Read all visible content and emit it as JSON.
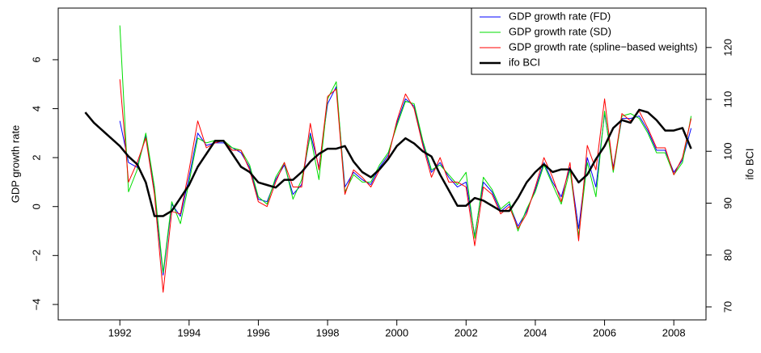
{
  "chart_data": {
    "type": "line",
    "xlabel": null,
    "ylabel": "GDP growth rate",
    "y2label": "ifo BCI",
    "xlim": [
      1990.22,
      2008.93
    ],
    "xticks": [
      1992,
      1994,
      1996,
      1998,
      2000,
      2002,
      2004,
      2006,
      2008
    ],
    "ylim": [
      -4.63,
      8.11
    ],
    "yticks": [
      {
        "value": -4,
        "label": "−4"
      },
      {
        "value": -2,
        "label": "−2"
      },
      0,
      2,
      4,
      6
    ],
    "y2lim": [
      67.5,
      127.6
    ],
    "y2ticks": [
      70,
      80,
      90,
      100,
      110,
      120
    ],
    "legend": "topright",
    "series": [
      {
        "name": "GDP growth rate (FD)",
        "color": "#0000ff",
        "width": 1,
        "x": [
          1992,
          1992.25,
          1992.5,
          1992.75,
          1993,
          1993.25,
          1993.5,
          1993.75,
          1994,
          1994.25,
          1994.5,
          1994.75,
          1995,
          1995.25,
          1995.5,
          1995.75,
          1996,
          1996.25,
          1996.5,
          1996.75,
          1997,
          1997.25,
          1997.5,
          1997.75,
          1998,
          1998.25,
          1998.5,
          1998.75,
          1999,
          1999.25,
          1999.5,
          1999.75,
          2000,
          2000.25,
          2000.5,
          2000.75,
          2001,
          2001.25,
          2001.5,
          2001.75,
          2002,
          2002.25,
          2002.5,
          2002.75,
          2003,
          2003.25,
          2003.5,
          2003.75,
          2004,
          2004.25,
          2004.5,
          2004.75,
          2005,
          2005.25,
          2005.5,
          2005.75,
          2006,
          2006.25,
          2006.5,
          2006.75,
          2007,
          2007.25,
          2007.5,
          2007.75,
          2008,
          2008.25,
          2008.5
        ],
        "values": [
          3.5,
          1.8,
          1.6,
          2.9,
          0.6,
          -2.8,
          0.1,
          -0.4,
          1.2,
          3.0,
          2.5,
          2.6,
          2.6,
          2.4,
          2.2,
          1.6,
          0.3,
          0.2,
          1.1,
          1.7,
          0.5,
          0.9,
          3.0,
          1.6,
          4.2,
          4.9,
          0.8,
          1.4,
          1.1,
          0.9,
          1.6,
          2.1,
          3.4,
          4.4,
          4.1,
          2.6,
          1.4,
          1.8,
          1.2,
          0.8,
          1.0,
          -1.2,
          1.0,
          0.6,
          -0.2,
          0.1,
          -0.8,
          -0.2,
          0.7,
          1.8,
          1.0,
          0.4,
          1.6,
          -0.9,
          2.0,
          0.8,
          3.8,
          1.6,
          3.6,
          3.6,
          3.7,
          3.1,
          2.3,
          2.3,
          1.4,
          1.9,
          3.2
        ]
      },
      {
        "name": "GDP growth rate (SD)",
        "color": "#00dd00",
        "width": 1,
        "x": [
          1992,
          1992.25,
          1992.5,
          1992.75,
          1993,
          1993.25,
          1993.5,
          1993.75,
          1994,
          1994.25,
          1994.5,
          1994.75,
          1995,
          1995.25,
          1995.5,
          1995.75,
          1996,
          1996.25,
          1996.5,
          1996.75,
          1997,
          1997.25,
          1997.5,
          1997.75,
          1998,
          1998.25,
          1998.5,
          1998.75,
          1999,
          1999.25,
          1999.5,
          1999.75,
          2000,
          2000.25,
          2000.5,
          2000.75,
          2001,
          2001.25,
          2001.5,
          2001.75,
          2002,
          2002.25,
          2002.5,
          2002.75,
          2003,
          2003.25,
          2003.5,
          2003.75,
          2004,
          2004.25,
          2004.5,
          2004.75,
          2005,
          2005.25,
          2005.5,
          2005.75,
          2006,
          2006.25,
          2006.5,
          2006.75,
          2007,
          2007.25,
          2007.5,
          2007.75,
          2008,
          2008.25,
          2008.5
        ],
        "values": [
          7.4,
          0.6,
          1.5,
          3.0,
          0.8,
          -2.7,
          0.2,
          -0.7,
          1.0,
          2.8,
          2.6,
          2.7,
          2.7,
          2.4,
          2.3,
          1.7,
          0.4,
          0.1,
          1.2,
          1.8,
          0.3,
          1.1,
          2.9,
          1.1,
          4.4,
          5.1,
          0.6,
          1.3,
          1.0,
          1.0,
          1.7,
          2.2,
          3.3,
          4.3,
          4.2,
          2.7,
          1.5,
          1.7,
          1.3,
          0.9,
          1.4,
          -1.3,
          1.2,
          0.7,
          -0.1,
          0.2,
          -1.0,
          -0.1,
          0.6,
          1.7,
          0.9,
          0.1,
          1.5,
          -1.2,
          1.8,
          0.4,
          3.9,
          1.4,
          3.7,
          3.8,
          3.6,
          3.0,
          2.2,
          2.2,
          1.3,
          1.8,
          3.7
        ]
      },
      {
        "name": "GDP growth rate (spline−based weights)",
        "color": "#ff0000",
        "width": 1,
        "x": [
          1992,
          1992.25,
          1992.5,
          1992.75,
          1993,
          1993.25,
          1993.5,
          1993.75,
          1994,
          1994.25,
          1994.5,
          1994.75,
          1995,
          1995.25,
          1995.5,
          1995.75,
          1996,
          1996.25,
          1996.5,
          1996.75,
          1997,
          1997.25,
          1997.5,
          1997.75,
          1998,
          1998.25,
          1998.5,
          1998.75,
          1999,
          1999.25,
          1999.5,
          1999.75,
          2000,
          2000.25,
          2000.5,
          2000.75,
          2001,
          2001.25,
          2001.5,
          2001.75,
          2002,
          2002.25,
          2002.5,
          2002.75,
          2003,
          2003.25,
          2003.5,
          2003.75,
          2004,
          2004.25,
          2004.5,
          2004.75,
          2005,
          2005.25,
          2005.5,
          2005.75,
          2006,
          2006.25,
          2006.5,
          2006.75,
          2007,
          2007.25,
          2007.5,
          2007.75,
          2008,
          2008.25,
          2008.5
        ],
        "values": [
          5.2,
          1.0,
          1.8,
          2.8,
          0.5,
          -3.5,
          -0.2,
          -0.3,
          1.5,
          3.5,
          2.4,
          2.6,
          2.7,
          2.3,
          2.3,
          1.5,
          0.2,
          0.0,
          1.0,
          1.8,
          0.8,
          0.8,
          3.4,
          1.5,
          4.5,
          4.8,
          0.5,
          1.5,
          1.2,
          0.8,
          1.5,
          2.0,
          3.5,
          4.6,
          4.0,
          2.5,
          1.2,
          2.0,
          1.0,
          1.0,
          0.8,
          -1.6,
          0.8,
          0.5,
          -0.3,
          0.0,
          -0.9,
          -0.3,
          0.8,
          2.0,
          1.2,
          0.2,
          1.8,
          -1.4,
          2.5,
          1.5,
          4.4,
          1.5,
          3.8,
          3.5,
          3.9,
          3.2,
          2.4,
          2.4,
          1.3,
          2.0,
          3.6
        ]
      },
      {
        "name": "ifo BCI",
        "color": "#000000",
        "width": 2.5,
        "axis": "y2",
        "x": [
          1991,
          1991.25,
          1991.5,
          1991.75,
          1992,
          1992.25,
          1992.5,
          1992.75,
          1993,
          1993.25,
          1993.5,
          1993.75,
          1994,
          1994.25,
          1994.5,
          1994.75,
          1995,
          1995.25,
          1995.5,
          1995.75,
          1996,
          1996.25,
          1996.5,
          1996.75,
          1997,
          1997.25,
          1997.5,
          1997.75,
          1998,
          1998.25,
          1998.5,
          1998.75,
          1999,
          1999.25,
          1999.5,
          1999.75,
          2000,
          2000.25,
          2000.5,
          2000.75,
          2001,
          2001.25,
          2001.5,
          2001.75,
          2002,
          2002.25,
          2002.5,
          2002.75,
          2003,
          2003.25,
          2003.5,
          2003.75,
          2004,
          2004.25,
          2004.5,
          2004.75,
          2005,
          2005.25,
          2005.5,
          2005.75,
          2006,
          2006.25,
          2006.5,
          2006.75,
          2007,
          2007.25,
          2007.5,
          2007.75,
          2008,
          2008.25,
          2008.5
        ],
        "values": [
          107.5,
          105.5,
          104,
          102.5,
          101,
          99,
          97.5,
          94,
          87.5,
          87.5,
          88.5,
          91,
          93.5,
          97,
          99.5,
          102,
          102,
          99.5,
          97,
          96,
          94,
          93.5,
          93,
          94.5,
          94.5,
          96,
          98,
          99.5,
          100.5,
          100.5,
          101,
          98,
          96,
          95,
          96.5,
          98.5,
          101,
          102.5,
          101.5,
          100,
          99,
          95.5,
          92.5,
          89.5,
          89.5,
          91,
          90.5,
          89.5,
          88.5,
          88.5,
          91,
          94,
          96,
          97.5,
          96,
          96.5,
          96.5,
          94,
          95.5,
          98.5,
          101,
          104.5,
          106,
          105.5,
          108,
          107.5,
          106,
          104,
          104,
          104.5,
          100.5
        ]
      }
    ]
  }
}
